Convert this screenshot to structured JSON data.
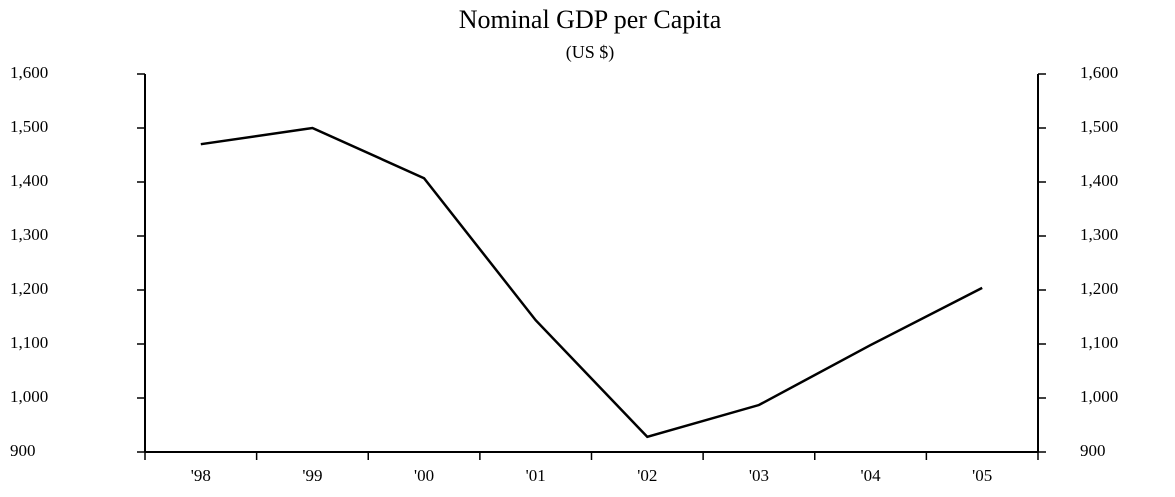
{
  "chart_data": {
    "type": "line",
    "title": "Nominal GDP per Capita",
    "subtitle": "(US $)",
    "categories": [
      "'98",
      "'99",
      "'00",
      "'01",
      "'02",
      "'03",
      "'04",
      "'05"
    ],
    "series": [
      {
        "color": "#000000",
        "values": [
          1470,
          1500,
          1407,
          1144,
          928,
          987,
          1098,
          1204
        ]
      }
    ],
    "ylim": [
      900,
      1600
    ],
    "yticks": [
      900,
      {
        "value": 1000,
        "label": "1,000"
      },
      {
        "value": 1100,
        "label": "1,100"
      },
      {
        "value": 1200,
        "label": "1,200"
      },
      {
        "value": 1300,
        "label": "1,300"
      },
      {
        "value": 1400,
        "label": "1,400"
      },
      {
        "value": 1500,
        "label": "1,500"
      },
      {
        "value": 1600,
        "label": "1,600"
      }
    ],
    "y2lim": [
      900,
      1600
    ],
    "y2ticks": [
      900,
      {
        "value": 1000,
        "label": "1,000"
      },
      {
        "value": 1100,
        "label": "1,100"
      },
      {
        "value": 1200,
        "label": "1,200"
      },
      {
        "value": 1300,
        "label": "1,300"
      },
      {
        "value": 1400,
        "label": "1,400"
      },
      {
        "value": 1500,
        "label": "1,500"
      },
      {
        "value": 1600,
        "label": "1,600"
      }
    ],
    "grid": false
  }
}
